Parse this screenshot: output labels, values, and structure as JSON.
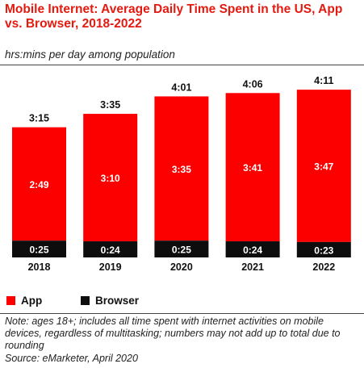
{
  "title": "Mobile Internet: Average Daily Time Spent in the US, App vs. Browser, 2018-2022",
  "subtitle": "hrs:mins per day among population",
  "colors": {
    "app": "#fc0000",
    "browser": "#0d0d0d",
    "title": "#e41a10"
  },
  "legend": {
    "app_label": "App",
    "browser_label": "Browser"
  },
  "note": "Note: ages 18+; includes all time spent with internet activities on mobile devices, regardless of multitasking; numbers may not add up to total due to rounding",
  "source": "Source: eMarketer, April 2020",
  "chart_data": {
    "type": "bar",
    "stacked": true,
    "unit": "hrs:mins per day",
    "categories": [
      "2018",
      "2019",
      "2020",
      "2021",
      "2022"
    ],
    "series": [
      {
        "name": "Browser",
        "values": [
          25,
          24,
          25,
          24,
          23
        ],
        "labels": [
          "0:25",
          "0:24",
          "0:25",
          "0:24",
          "0:23"
        ]
      },
      {
        "name": "App",
        "values": [
          169,
          190,
          215,
          221,
          227
        ],
        "labels": [
          "2:49",
          "3:10",
          "3:35",
          "3:41",
          "3:47"
        ]
      }
    ],
    "totals": {
      "values": [
        195,
        215,
        241,
        246,
        251
      ],
      "labels": [
        "3:15",
        "3:35",
        "4:01",
        "4:06",
        "4:11"
      ]
    },
    "legend_position": "bottom-left",
    "grid": false
  }
}
